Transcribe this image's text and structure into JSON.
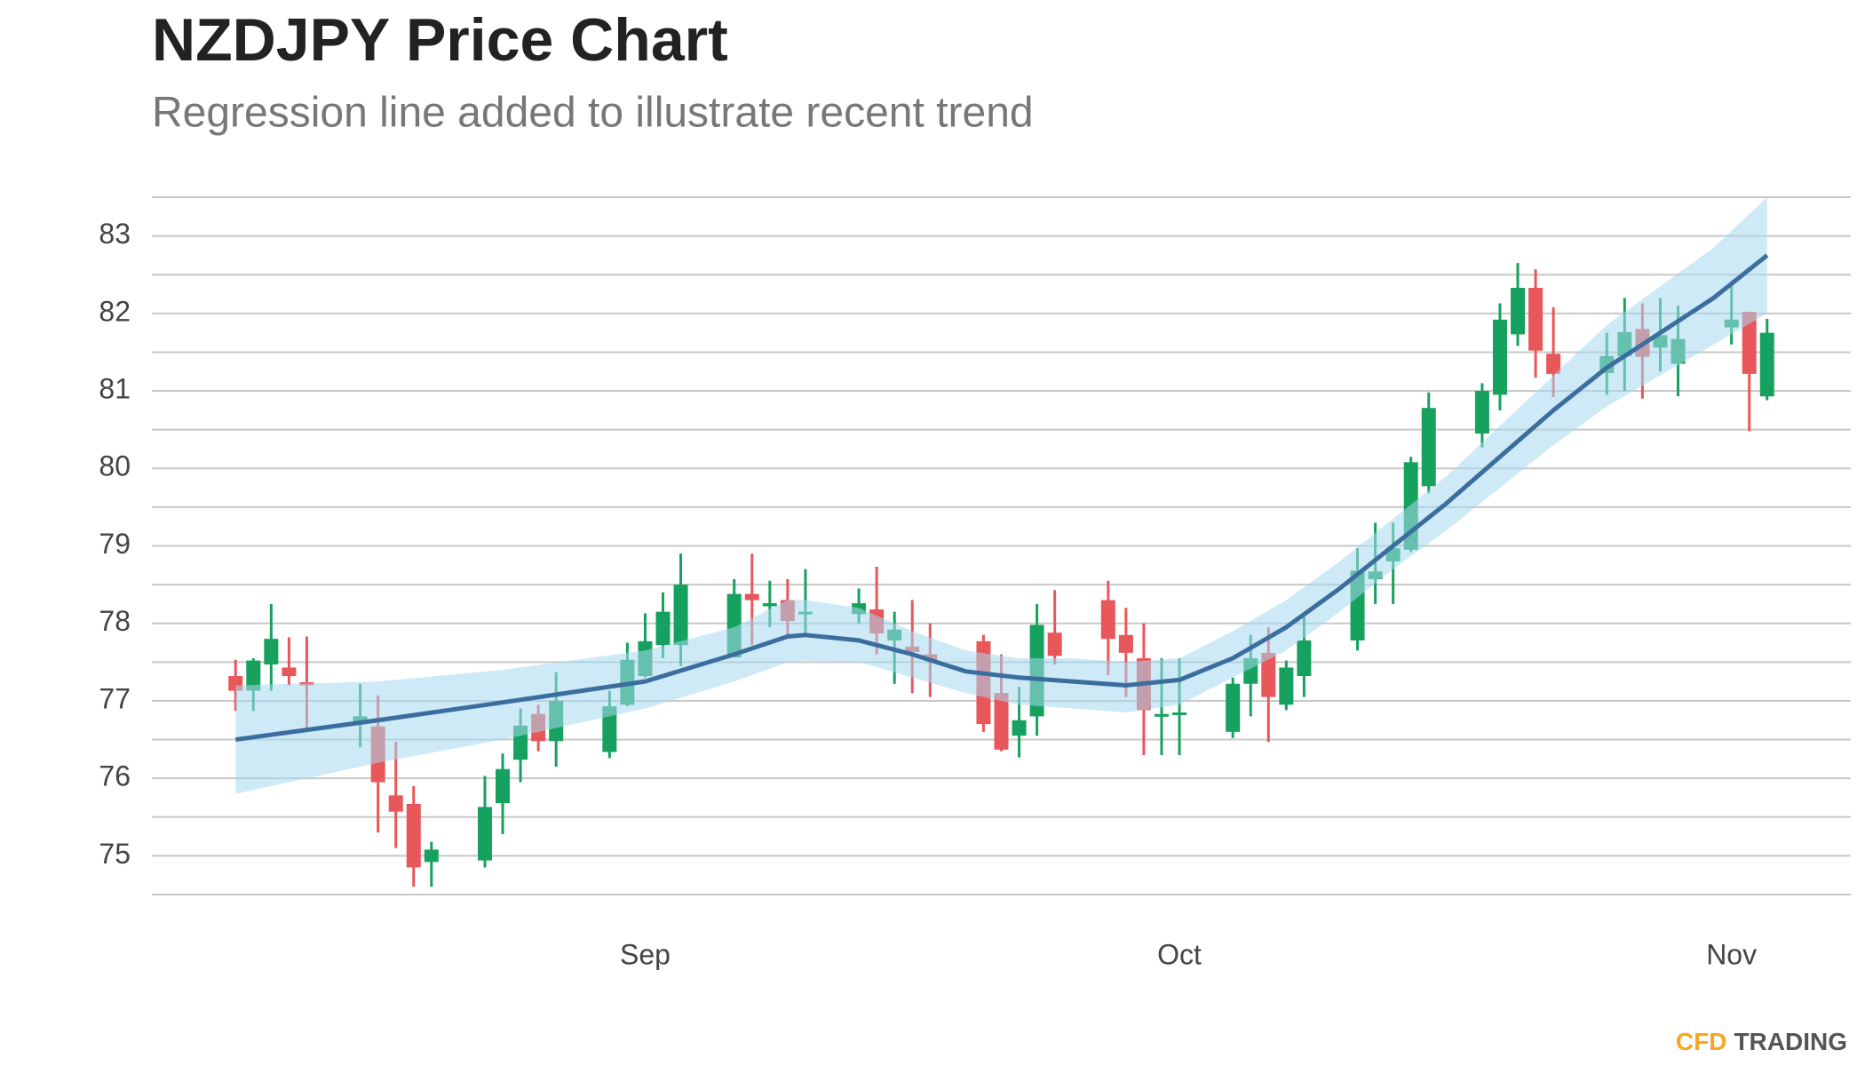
{
  "chart_data": {
    "type": "candlestick",
    "title": "NZDJPY Price Chart",
    "subtitle": "Regression line added to illustrate recent trend",
    "brand": [
      "CFD",
      "TRADING"
    ],
    "brand_colors": [
      "#f5a623",
      "#555555"
    ],
    "up_color": "#16a25e",
    "down_color": "#e8575a",
    "xlim": [
      -27.7,
      67.7
    ],
    "xticks": [
      {
        "value": 0,
        "label": "Sep"
      },
      {
        "value": 30,
        "label": "Oct"
      },
      {
        "value": 61,
        "label": "Nov"
      }
    ],
    "ylim": [
      74.5,
      83.5
    ],
    "yticks": [
      75,
      76,
      77,
      78,
      79,
      80,
      81,
      82,
      83
    ],
    "minor_yticks": [
      74.5,
      75.5,
      76.5,
      77.5,
      78.5,
      79.5,
      80.5,
      81.5,
      82.5,
      83.5
    ],
    "grid": true,
    "x": [
      -23,
      -22,
      -21,
      -20,
      -19,
      -16,
      -15,
      -14,
      -13,
      -12,
      -9,
      -8,
      -7,
      -6,
      -5,
      -2,
      -1,
      0,
      1,
      2,
      5,
      6,
      7,
      8,
      9,
      12,
      13,
      14,
      15,
      16,
      19,
      20,
      21,
      22,
      23,
      26,
      27,
      28,
      29,
      30,
      33,
      34,
      35,
      36,
      37,
      40,
      41,
      42,
      43,
      44,
      47,
      48,
      49,
      50,
      51,
      54,
      55,
      56,
      57,
      58,
      61,
      62,
      63
    ],
    "open": [
      77.32,
      77.13,
      77.47,
      77.43,
      77.24,
      76.73,
      76.67,
      75.78,
      75.67,
      74.92,
      74.94,
      75.68,
      76.24,
      76.83,
      76.48,
      76.34,
      76.95,
      77.32,
      77.72,
      77.72,
      77.56,
      78.38,
      78.22,
      78.3,
      78.12,
      78.12,
      78.18,
      77.78,
      77.7,
      77.6,
      77.77,
      77.1,
      76.55,
      76.8,
      77.88,
      78.3,
      77.85,
      77.55,
      76.8,
      76.83,
      76.6,
      77.22,
      77.62,
      76.95,
      77.32,
      77.78,
      78.57,
      78.8,
      78.95,
      79.77,
      80.45,
      80.95,
      81.73,
      82.33,
      81.48,
      81.23,
      81.45,
      81.8,
      81.56,
      81.35,
      81.82,
      82.02,
      80.93
    ],
    "high": [
      77.53,
      77.55,
      78.25,
      77.82,
      77.83,
      77.22,
      77.07,
      76.47,
      75.9,
      75.18,
      76.03,
      76.32,
      76.9,
      76.95,
      77.37,
      77.13,
      77.75,
      78.13,
      78.4,
      78.9,
      78.57,
      78.9,
      78.55,
      78.57,
      78.7,
      78.45,
      78.73,
      78.15,
      78.3,
      78.0,
      77.85,
      77.6,
      77.18,
      78.25,
      78.43,
      78.55,
      78.2,
      78.0,
      77.55,
      77.55,
      77.3,
      77.85,
      77.95,
      77.52,
      78.1,
      78.97,
      79.3,
      79.3,
      80.15,
      80.98,
      81.1,
      82.13,
      82.65,
      82.57,
      82.08,
      81.75,
      82.2,
      82.13,
      82.2,
      82.1,
      82.38,
      82.02,
      81.93
    ],
    "low": [
      76.87,
      76.87,
      77.13,
      77.2,
      76.63,
      76.4,
      75.3,
      75.1,
      74.6,
      74.6,
      74.85,
      75.28,
      75.95,
      76.35,
      76.15,
      76.26,
      76.93,
      77.3,
      77.55,
      77.45,
      77.56,
      77.72,
      77.95,
      77.85,
      77.82,
      78.0,
      77.6,
      77.22,
      77.1,
      77.05,
      76.6,
      76.35,
      76.27,
      76.55,
      77.47,
      77.33,
      77.05,
      76.3,
      76.3,
      76.3,
      76.52,
      76.8,
      76.47,
      76.88,
      77.05,
      77.65,
      78.25,
      78.25,
      78.92,
      79.68,
      80.27,
      80.75,
      81.58,
      81.17,
      80.92,
      80.95,
      81.0,
      80.9,
      81.25,
      80.93,
      81.6,
      80.48,
      80.88
    ],
    "close": [
      77.13,
      77.52,
      77.8,
      77.32,
      77.2,
      76.8,
      75.95,
      75.57,
      74.85,
      75.08,
      75.63,
      76.12,
      76.68,
      76.48,
      77.0,
      76.93,
      77.53,
      77.77,
      78.15,
      78.5,
      78.38,
      78.3,
      78.26,
      78.03,
      78.15,
      78.26,
      77.87,
      77.92,
      77.63,
      77.53,
      76.7,
      76.37,
      76.75,
      77.98,
      77.58,
      77.8,
      77.62,
      76.88,
      76.83,
      76.85,
      77.22,
      77.55,
      77.05,
      77.43,
      77.78,
      78.68,
      78.67,
      78.97,
      80.08,
      80.78,
      81.0,
      81.92,
      82.33,
      81.52,
      81.22,
      81.45,
      81.76,
      81.44,
      81.72,
      81.67,
      81.92,
      81.22,
      81.75
    ],
    "regression": {
      "color": "#3b6e9e",
      "band_color": "#a8d8f0",
      "x": [
        -23,
        -15,
        -8,
        0,
        5,
        8,
        9,
        12,
        15,
        18,
        21,
        24,
        27,
        30,
        33,
        36,
        39,
        42,
        45,
        48,
        51,
        54,
        57,
        60,
        63
      ],
      "values": [
        76.5,
        76.75,
        76.98,
        77.25,
        77.6,
        77.83,
        77.85,
        77.78,
        77.6,
        77.38,
        77.3,
        77.25,
        77.2,
        77.27,
        77.55,
        77.95,
        78.45,
        79.0,
        79.55,
        80.15,
        80.75,
        81.3,
        81.75,
        82.2,
        82.75
      ],
      "lower": [
        75.8,
        76.2,
        76.5,
        76.9,
        77.25,
        77.5,
        77.52,
        77.5,
        77.3,
        77.1,
        76.95,
        76.9,
        76.85,
        76.95,
        77.3,
        77.65,
        78.15,
        78.7,
        79.2,
        79.75,
        80.3,
        80.8,
        81.2,
        81.6,
        82.0
      ],
      "upper": [
        77.2,
        77.25,
        77.4,
        77.65,
        77.95,
        78.3,
        78.3,
        78.2,
        77.9,
        77.65,
        77.55,
        77.55,
        77.5,
        77.55,
        77.9,
        78.3,
        78.8,
        79.35,
        79.9,
        80.55,
        81.2,
        81.85,
        82.35,
        82.85,
        83.5
      ]
    }
  }
}
